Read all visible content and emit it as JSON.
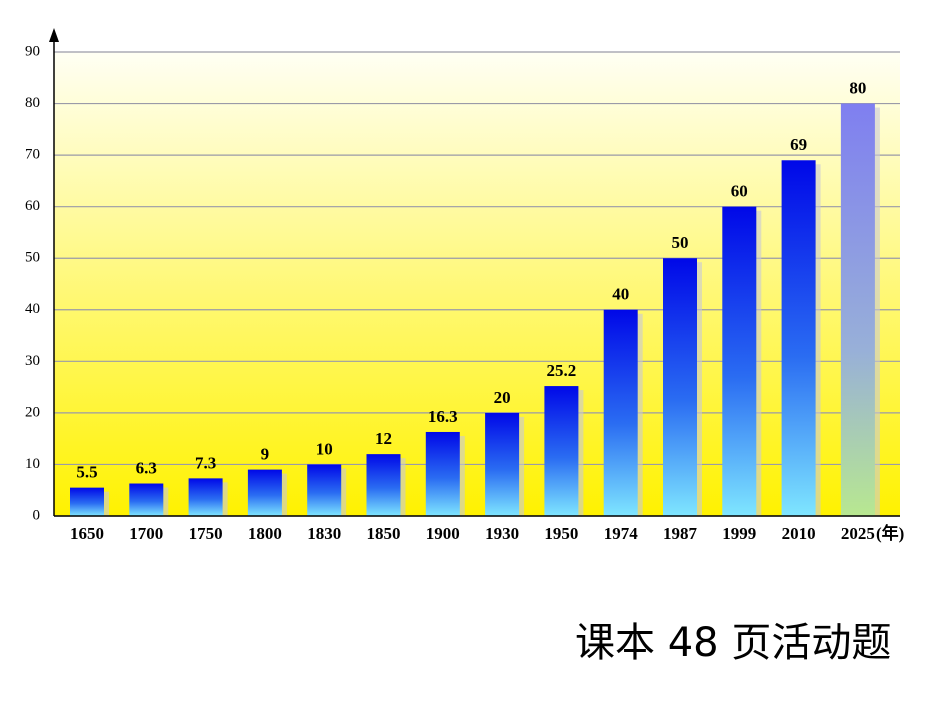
{
  "chart_data": {
    "type": "bar",
    "categories": [
      "1650",
      "1700",
      "1750",
      "1800",
      "1830",
      "1850",
      "1900",
      "1930",
      "1950",
      "1974",
      "1987",
      "1999",
      "2010",
      "2025"
    ],
    "values": [
      5.5,
      6.3,
      7.3,
      9,
      10,
      12,
      16.3,
      20,
      25.2,
      40,
      50,
      60,
      69,
      80
    ],
    "x_label": "(年)",
    "ylim": [
      0,
      90
    ],
    "yticks": [
      0,
      10,
      20,
      30,
      40,
      50,
      60,
      70,
      80,
      90
    ],
    "grid": true
  },
  "footer": "课本 48 页活动题"
}
